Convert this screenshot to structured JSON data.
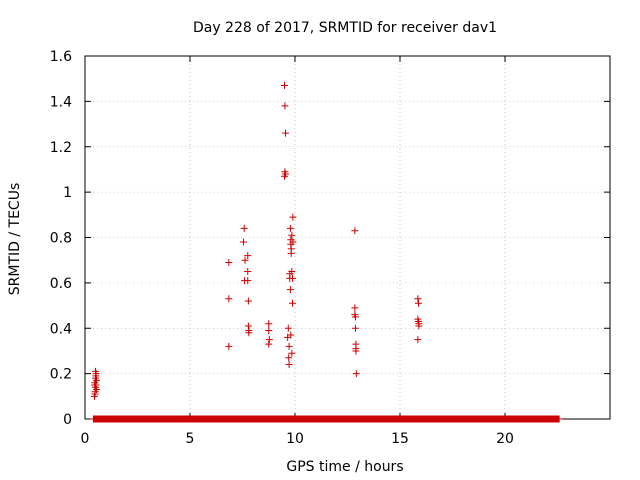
{
  "chart_data": {
    "type": "scatter",
    "title": "Day 228 of 2017, SRMTID for receiver dav1",
    "xlabel": "GPS time / hours",
    "ylabel": "SRMTID / TECUs",
    "xlim": [
      0,
      25
    ],
    "ylim": [
      0,
      1.6
    ],
    "x_ticks": [
      0,
      5,
      10,
      15,
      20
    ],
    "y_ticks": [
      0,
      0.2,
      0.4,
      0.6,
      0.8,
      1,
      1.2,
      1.4,
      1.6
    ],
    "x_tick_labels": [
      "0",
      "5",
      "10",
      "15",
      "20"
    ],
    "y_tick_labels": [
      "0",
      "0.2",
      "0.4",
      "0.6",
      "0.8",
      "1",
      "1.2",
      "1.4",
      "1.6"
    ],
    "grid": true,
    "marker": "+",
    "marker_color": "#cc0000",
    "zero_baseline": {
      "x_start": 0.4,
      "x_end": 22.6,
      "step": 0.0333,
      "y": 0
    },
    "series": [
      {
        "name": "SRMTID",
        "points": [
          [
            0.45,
            0.1
          ],
          [
            0.48,
            0.12
          ],
          [
            0.5,
            0.14
          ],
          [
            0.52,
            0.15
          ],
          [
            0.55,
            0.13
          ],
          [
            0.47,
            0.16
          ],
          [
            0.5,
            0.18
          ],
          [
            0.53,
            0.2
          ],
          [
            0.5,
            0.21
          ],
          [
            0.46,
            0.15
          ],
          [
            0.55,
            0.17
          ],
          [
            0.48,
            0.11
          ],
          [
            0.52,
            0.19
          ],
          [
            6.85,
            0.32
          ],
          [
            6.85,
            0.53
          ],
          [
            6.85,
            0.69
          ],
          [
            7.55,
            0.78
          ],
          [
            7.58,
            0.84
          ],
          [
            7.6,
            0.61
          ],
          [
            7.62,
            0.7
          ],
          [
            7.75,
            0.72
          ],
          [
            7.75,
            0.65
          ],
          [
            7.75,
            0.61
          ],
          [
            7.78,
            0.52
          ],
          [
            7.78,
            0.41
          ],
          [
            7.8,
            0.38
          ],
          [
            7.8,
            0.39
          ],
          [
            8.75,
            0.42
          ],
          [
            8.75,
            0.39
          ],
          [
            8.75,
            0.33
          ],
          [
            8.78,
            0.35
          ],
          [
            9.5,
            1.47
          ],
          [
            9.52,
            1.38
          ],
          [
            9.55,
            1.26
          ],
          [
            9.52,
            1.09
          ],
          [
            9.55,
            1.08
          ],
          [
            9.5,
            1.07
          ],
          [
            9.65,
            0.36
          ],
          [
            9.68,
            0.4
          ],
          [
            9.7,
            0.27
          ],
          [
            9.72,
            0.24
          ],
          [
            9.72,
            0.32
          ],
          [
            9.75,
            0.62
          ],
          [
            9.75,
            0.64
          ],
          [
            9.78,
            0.57
          ],
          [
            9.78,
            0.84
          ],
          [
            9.8,
            0.77
          ],
          [
            9.8,
            0.79
          ],
          [
            9.82,
            0.75
          ],
          [
            9.82,
            0.73
          ],
          [
            9.85,
            0.81
          ],
          [
            9.85,
            0.65
          ],
          [
            9.88,
            0.62
          ],
          [
            9.88,
            0.51
          ],
          [
            9.9,
            0.89
          ],
          [
            9.9,
            0.78
          ],
          [
            9.85,
            0.29
          ],
          [
            9.8,
            0.37
          ],
          [
            12.85,
            0.83
          ],
          [
            12.85,
            0.49
          ],
          [
            12.85,
            0.46
          ],
          [
            12.88,
            0.45
          ],
          [
            12.88,
            0.4
          ],
          [
            12.9,
            0.33
          ],
          [
            12.9,
            0.31
          ],
          [
            12.9,
            0.3
          ],
          [
            12.92,
            0.2
          ],
          [
            15.85,
            0.53
          ],
          [
            15.88,
            0.51
          ],
          [
            15.85,
            0.44
          ],
          [
            15.88,
            0.43
          ],
          [
            15.9,
            0.42
          ],
          [
            15.9,
            0.41
          ],
          [
            15.85,
            0.35
          ]
        ]
      }
    ]
  }
}
